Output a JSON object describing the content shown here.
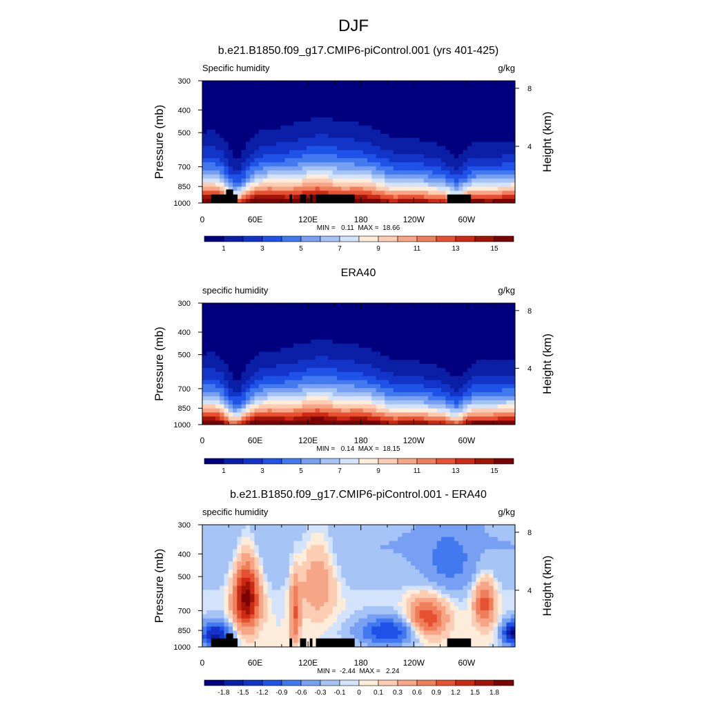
{
  "figure": {
    "title": "DJF"
  },
  "colors": {
    "scale_pos": [
      "#00007f",
      "#0a1fa5",
      "#1235c8",
      "#1f52e6",
      "#4379ee",
      "#77a0f2",
      "#a6c3f6",
      "#d3e3fb",
      "#fdecd9",
      "#fccdb2",
      "#f6a686",
      "#ef7e5a",
      "#e65131",
      "#cd2a15",
      "#a11408",
      "#7a0303"
    ],
    "scale_diff": [
      "#00007f",
      "#0a1fa5",
      "#1235c8",
      "#1f52e6",
      "#4379ee",
      "#77a0f2",
      "#a6c3f6",
      "#d3e3fb",
      "#fdecd9",
      "#fccdb2",
      "#f6a686",
      "#ef7e5a",
      "#e65131",
      "#cd2a15",
      "#a11408",
      "#7a0303"
    ],
    "mask": "#000000"
  },
  "chart_data": [
    {
      "type": "heatmap",
      "id": "model",
      "title": "b.e21.B1850.f09_g17.CMIP6-piControl.001 (yrs 401-425)",
      "left_label": "Specific humidity",
      "right_label": "g/kg",
      "ylabel": "Pressure (mb)",
      "y2label": "Height (km)",
      "x_ticks": [
        "0",
        "60E",
        "120E",
        "180",
        "120W",
        "60W"
      ],
      "x_tick_lon": [
        0,
        60,
        120,
        180,
        240,
        300
      ],
      "xlim": [
        0,
        355
      ],
      "y_ticks": [
        "300",
        "400",
        "500",
        "700",
        "850",
        "1000"
      ],
      "y_tick_p": [
        300,
        400,
        500,
        700,
        850,
        1000
      ],
      "ylim": [
        300,
        1000
      ],
      "y2_ticks": [
        "8",
        "4"
      ],
      "y2_tick_km": [
        8,
        4
      ],
      "minmax": "MIN =   0.11  MAX =  18.66",
      "colorbar_labels": [
        "1",
        "3",
        "5",
        "7",
        "9",
        "11",
        "13",
        "15"
      ],
      "levels": [
        1,
        2,
        3,
        4,
        5,
        6,
        7,
        8,
        9,
        10,
        11,
        12,
        13,
        14,
        15
      ],
      "min": 0.11,
      "max": 18.66,
      "masked": true
    },
    {
      "type": "heatmap",
      "id": "obs",
      "title": "ERA40",
      "left_label": "specific humidity",
      "right_label": "g/kg",
      "ylabel": "Pressure (mb)",
      "y2label": "Height (km)",
      "x_ticks": [
        "0",
        "60E",
        "120E",
        "180",
        "120W",
        "60W"
      ],
      "x_tick_lon": [
        0,
        60,
        120,
        180,
        240,
        300
      ],
      "xlim": [
        0,
        355
      ],
      "y_ticks": [
        "300",
        "400",
        "500",
        "700",
        "850",
        "1000"
      ],
      "y_tick_p": [
        300,
        400,
        500,
        700,
        850,
        1000
      ],
      "ylim": [
        300,
        1000
      ],
      "y2_ticks": [
        "8",
        "4"
      ],
      "y2_tick_km": [
        8,
        4
      ],
      "minmax": "MIN =   0.14  MAX =  18.15",
      "colorbar_labels": [
        "1",
        "3",
        "5",
        "7",
        "9",
        "11",
        "13",
        "15"
      ],
      "levels": [
        1,
        2,
        3,
        4,
        5,
        6,
        7,
        8,
        9,
        10,
        11,
        12,
        13,
        14,
        15
      ],
      "min": 0.14,
      "max": 18.15,
      "masked": false
    },
    {
      "type": "heatmap",
      "id": "diff",
      "title": "b.e21.B1850.f09_g17.CMIP6-piControl.001 - ERA40",
      "left_label": "specific humidity",
      "right_label": "g/kg",
      "ylabel": "Pressure (mb)",
      "y2label": "Height (km)",
      "x_ticks": [
        "0",
        "60E",
        "120E",
        "180",
        "120W",
        "60W"
      ],
      "x_tick_lon": [
        0,
        60,
        120,
        180,
        240,
        300
      ],
      "xlim": [
        0,
        355
      ],
      "y_ticks": [
        "300",
        "400",
        "500",
        "700",
        "850",
        "1000"
      ],
      "y_tick_p": [
        300,
        400,
        500,
        700,
        850,
        1000
      ],
      "ylim": [
        300,
        1000
      ],
      "y2_ticks": [
        "8",
        "4"
      ],
      "y2_tick_km": [
        8,
        4
      ],
      "minmax": "MIN =  -2.44  MAX =   2.24",
      "colorbar_labels": [
        "-1.8",
        "-1.5",
        "-1.2",
        "-0.9",
        "-0.6",
        "-0.3",
        "-0.1",
        "0",
        "0.1",
        "0.3",
        "0.6",
        "0.9",
        "1.2",
        "1.5",
        "1.8"
      ],
      "levels": [
        -1.8,
        -1.5,
        -1.2,
        -0.9,
        -0.6,
        -0.3,
        -0.1,
        0,
        0.1,
        0.3,
        0.6,
        0.9,
        1.2,
        1.5,
        1.8
      ],
      "min": -2.44,
      "max": 2.24,
      "masked": true
    }
  ],
  "topography": [
    {
      "lon0": 10,
      "lon1": 40,
      "p": 920
    },
    {
      "lon0": 27,
      "lon1": 35,
      "p": 875
    },
    {
      "lon0": 99,
      "lon1": 102,
      "p": 920
    },
    {
      "lon0": 111,
      "lon1": 118,
      "p": 920
    },
    {
      "lon0": 122,
      "lon1": 125,
      "p": 920
    },
    {
      "lon0": 129,
      "lon1": 173,
      "p": 920
    },
    {
      "lon0": 278,
      "lon1": 305,
      "p": 920
    }
  ]
}
